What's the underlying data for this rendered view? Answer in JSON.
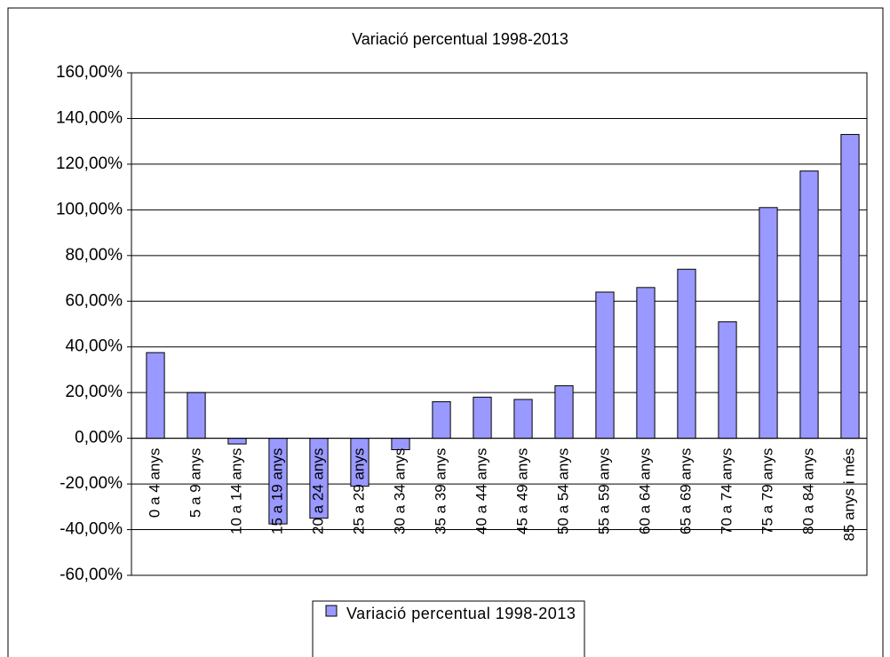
{
  "chart_data": {
    "type": "bar",
    "title": "Variació percentual 1998-2013",
    "categories": [
      "0 a 4 anys",
      "5 a 9 anys",
      "10 a 14 anys",
      "15 a 19 anys",
      "20 a 24 anys",
      "25 a 29 anys",
      "30 a 34 anys",
      "35 a 39 anys",
      "40 a 44 anys",
      "45 a 49 anys",
      "50 a 54 anys",
      "55 a 59 anys",
      "60 a 64 anys",
      "65 a 69 anys",
      "70 a 74 anys",
      "75 a 79 anys",
      "80 a 84 anys",
      "85 anys i més"
    ],
    "series": [
      {
        "name": "Variació percentual 1998-2013",
        "color": "#9999ff",
        "values": [
          37.5,
          20,
          -2.5,
          -37.5,
          -35,
          -21,
          -5,
          16,
          18,
          17,
          23,
          64,
          66,
          74,
          51,
          101,
          117,
          133
        ]
      }
    ],
    "ylim": [
      -60,
      160
    ],
    "yticks": [
      {
        "value": -60,
        "label": "-60,00%"
      },
      {
        "value": -40,
        "label": "-40,00%"
      },
      {
        "value": -20,
        "label": "-20,00%"
      },
      {
        "value": 0,
        "label": "0,00%"
      },
      {
        "value": 20,
        "label": "20,00%"
      },
      {
        "value": 40,
        "label": "40,00%"
      },
      {
        "value": 60,
        "label": "60,00%"
      },
      {
        "value": 80,
        "label": "80,00%"
      },
      {
        "value": 100,
        "label": "100,00%"
      },
      {
        "value": 120,
        "label": "120,00%"
      },
      {
        "value": 140,
        "label": "140,00%"
      },
      {
        "value": 160,
        "label": "160,00%"
      }
    ],
    "grid": true,
    "legend": "bottom"
  }
}
